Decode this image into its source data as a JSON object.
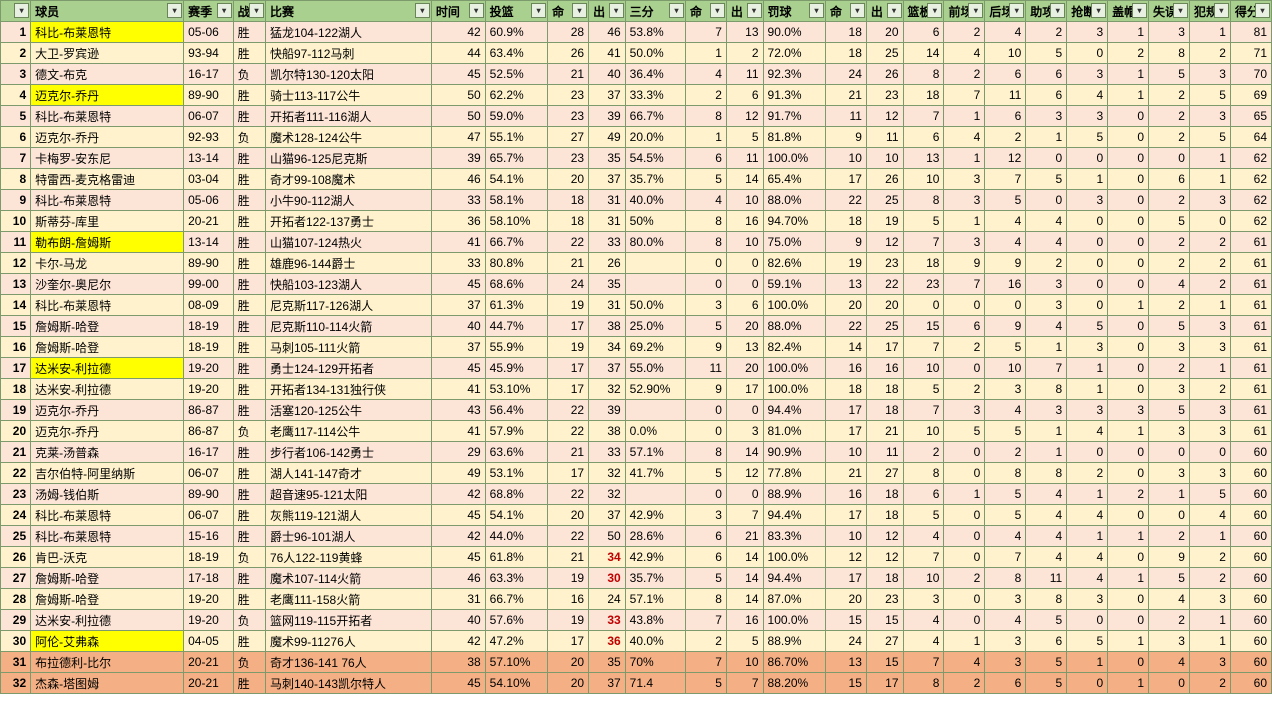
{
  "headers": [
    "",
    "球员",
    "赛季",
    "战",
    "比赛",
    "时间",
    "投篮",
    "命",
    "出",
    "三分",
    "命",
    "出",
    "罚球",
    "命",
    "出",
    "篮板",
    "前场",
    "后场",
    "助攻",
    "抢断",
    "盖帽",
    "失误",
    "犯规",
    "得分"
  ],
  "col_classes": [
    "c-idx",
    "c-player",
    "c-season",
    "c-wl",
    "c-game",
    "c-time",
    "c-fgp",
    "c-n",
    "c-n2",
    "c-3p",
    "c-n",
    "c-n2",
    "c-ftp",
    "c-n",
    "c-n2",
    "c-n",
    "c-n",
    "c-n",
    "c-n",
    "c-n",
    "c-n",
    "c-n",
    "c-n",
    "c-n"
  ],
  "numeric_cols": [
    0,
    5,
    7,
    8,
    10,
    11,
    13,
    14,
    15,
    16,
    17,
    18,
    19,
    20,
    21,
    22,
    23
  ],
  "highlight_yellow_rows_playercell": [
    0,
    3,
    10,
    16,
    29
  ],
  "salmon_rows": [
    30,
    31
  ],
  "red_cells": [
    [
      25,
      8
    ],
    [
      26,
      8
    ],
    [
      28,
      8
    ],
    [
      29,
      8
    ]
  ],
  "rows": [
    [
      1,
      "科比-布莱恩特",
      "05-06",
      "胜",
      "猛龙104-122湖人",
      42,
      "60.9%",
      28,
      46,
      "53.8%",
      7,
      13,
      "90.0%",
      18,
      20,
      6,
      2,
      4,
      2,
      3,
      1,
      3,
      1,
      81
    ],
    [
      2,
      "大卫-罗宾逊",
      "93-94",
      "胜",
      "快船97-112马刺",
      44,
      "63.4%",
      26,
      41,
      "50.0%",
      1,
      2,
      "72.0%",
      18,
      25,
      14,
      4,
      10,
      5,
      0,
      2,
      8,
      2,
      71
    ],
    [
      3,
      "德文-布克",
      "16-17",
      "负",
      "凯尔特130-120太阳",
      45,
      "52.5%",
      21,
      40,
      "36.4%",
      4,
      11,
      "92.3%",
      24,
      26,
      8,
      2,
      6,
      6,
      3,
      1,
      5,
      3,
      70
    ],
    [
      4,
      "迈克尔-乔丹",
      "89-90",
      "胜",
      "骑士113-117公牛",
      50,
      "62.2%",
      23,
      37,
      "33.3%",
      2,
      6,
      "91.3%",
      21,
      23,
      18,
      7,
      11,
      6,
      4,
      1,
      2,
      5,
      69
    ],
    [
      5,
      "科比-布莱恩特",
      "06-07",
      "胜",
      "开拓者111-116湖人",
      50,
      "59.0%",
      23,
      39,
      "66.7%",
      8,
      12,
      "91.7%",
      11,
      12,
      7,
      1,
      6,
      3,
      3,
      0,
      2,
      3,
      65
    ],
    [
      6,
      "迈克尔-乔丹",
      "92-93",
      "负",
      "魔术128-124公牛",
      47,
      "55.1%",
      27,
      49,
      "20.0%",
      1,
      5,
      "81.8%",
      9,
      11,
      6,
      4,
      2,
      1,
      5,
      0,
      2,
      5,
      64
    ],
    [
      7,
      "卡梅罗-安东尼",
      "13-14",
      "胜",
      "山猫96-125尼克斯",
      39,
      "65.7%",
      23,
      35,
      "54.5%",
      6,
      11,
      "100.0%",
      10,
      10,
      13,
      1,
      12,
      0,
      0,
      0,
      0,
      1,
      62
    ],
    [
      8,
      "特雷西-麦克格雷迪",
      "03-04",
      "胜",
      "奇才99-108魔术",
      46,
      "54.1%",
      20,
      37,
      "35.7%",
      5,
      14,
      "65.4%",
      17,
      26,
      10,
      3,
      7,
      5,
      1,
      0,
      6,
      1,
      62
    ],
    [
      9,
      "科比-布莱恩特",
      "05-06",
      "胜",
      "小牛90-112湖人",
      33,
      "58.1%",
      18,
      31,
      "40.0%",
      4,
      10,
      "88.0%",
      22,
      25,
      8,
      3,
      5,
      0,
      3,
      0,
      2,
      3,
      62
    ],
    [
      10,
      "斯蒂芬-库里",
      "20-21",
      "胜",
      "开拓者122-137勇士",
      36,
      "58.10%",
      18,
      31,
      "50%",
      8,
      16,
      "94.70%",
      18,
      19,
      5,
      1,
      4,
      4,
      0,
      0,
      5,
      0,
      62
    ],
    [
      11,
      "勒布朗-詹姆斯",
      "13-14",
      "胜",
      "山猫107-124热火",
      41,
      "66.7%",
      22,
      33,
      "80.0%",
      8,
      10,
      "75.0%",
      9,
      12,
      7,
      3,
      4,
      4,
      0,
      0,
      2,
      2,
      61
    ],
    [
      12,
      "卡尔-马龙",
      "89-90",
      "胜",
      "雄鹿96-144爵士",
      33,
      "80.8%",
      21,
      26,
      "",
      0,
      0,
      "82.6%",
      19,
      23,
      18,
      9,
      9,
      2,
      0,
      0,
      2,
      2,
      61
    ],
    [
      13,
      "沙奎尔-奥尼尔",
      "99-00",
      "胜",
      "快船103-123湖人",
      45,
      "68.6%",
      24,
      35,
      "",
      0,
      0,
      "59.1%",
      13,
      22,
      23,
      7,
      16,
      3,
      0,
      0,
      4,
      2,
      61
    ],
    [
      14,
      "科比-布莱恩特",
      "08-09",
      "胜",
      "尼克斯117-126湖人",
      37,
      "61.3%",
      19,
      31,
      "50.0%",
      3,
      6,
      "100.0%",
      20,
      20,
      0,
      0,
      0,
      3,
      0,
      1,
      2,
      1,
      61
    ],
    [
      15,
      "詹姆斯-哈登",
      "18-19",
      "胜",
      "尼克斯110-114火箭",
      40,
      "44.7%",
      17,
      38,
      "25.0%",
      5,
      20,
      "88.0%",
      22,
      25,
      15,
      6,
      9,
      4,
      5,
      0,
      5,
      3,
      61
    ],
    [
      16,
      "詹姆斯-哈登",
      "18-19",
      "胜",
      "马刺105-111火箭",
      37,
      "55.9%",
      19,
      34,
      "69.2%",
      9,
      13,
      "82.4%",
      14,
      17,
      7,
      2,
      5,
      1,
      3,
      0,
      3,
      3,
      61
    ],
    [
      17,
      "达米安-利拉德",
      "19-20",
      "胜",
      "勇士124-129开拓者",
      45,
      "45.9%",
      17,
      37,
      "55.0%",
      11,
      20,
      "100.0%",
      16,
      16,
      10,
      0,
      10,
      7,
      1,
      0,
      2,
      1,
      61
    ],
    [
      18,
      "达米安-利拉德",
      "19-20",
      "胜",
      "开拓者134-131独行侠",
      41,
      "53.10%",
      17,
      32,
      "52.90%",
      9,
      17,
      "100.0%",
      18,
      18,
      5,
      2,
      3,
      8,
      1,
      0,
      3,
      2,
      61
    ],
    [
      19,
      "迈克尔-乔丹",
      "86-87",
      "胜",
      "活塞120-125公牛",
      43,
      "56.4%",
      22,
      39,
      "",
      0,
      0,
      "94.4%",
      17,
      18,
      7,
      3,
      4,
      3,
      3,
      3,
      5,
      3,
      61
    ],
    [
      20,
      "迈克尔-乔丹",
      "86-87",
      "负",
      "老鹰117-114公牛",
      41,
      "57.9%",
      22,
      38,
      "0.0%",
      0,
      3,
      "81.0%",
      17,
      21,
      10,
      5,
      5,
      1,
      4,
      1,
      3,
      3,
      61
    ],
    [
      21,
      "克莱-汤普森",
      "16-17",
      "胜",
      "步行者106-142勇士",
      29,
      "63.6%",
      21,
      33,
      "57.1%",
      8,
      14,
      "90.9%",
      10,
      11,
      2,
      0,
      2,
      1,
      0,
      0,
      0,
      0,
      60
    ],
    [
      22,
      "吉尔伯特-阿里纳斯",
      "06-07",
      "胜",
      "湖人141-147奇才",
      49,
      "53.1%",
      17,
      32,
      "41.7%",
      5,
      12,
      "77.8%",
      21,
      27,
      8,
      0,
      8,
      8,
      2,
      0,
      3,
      3,
      60
    ],
    [
      23,
      "汤姆-钱伯斯",
      "89-90",
      "胜",
      "超音速95-121太阳",
      42,
      "68.8%",
      22,
      32,
      "",
      0,
      0,
      "88.9%",
      16,
      18,
      6,
      1,
      5,
      4,
      1,
      2,
      1,
      5,
      60
    ],
    [
      24,
      "科比-布莱恩特",
      "06-07",
      "胜",
      "灰熊119-121湖人",
      45,
      "54.1%",
      20,
      37,
      "42.9%",
      3,
      7,
      "94.4%",
      17,
      18,
      5,
      0,
      5,
      4,
      4,
      0,
      0,
      4,
      60
    ],
    [
      25,
      "科比-布莱恩特",
      "15-16",
      "胜",
      "爵士96-101湖人",
      42,
      "44.0%",
      22,
      50,
      "28.6%",
      6,
      21,
      "83.3%",
      10,
      12,
      4,
      0,
      4,
      4,
      1,
      1,
      2,
      1,
      60
    ],
    [
      26,
      "肯巴-沃克",
      "18-19",
      "负",
      "76人122-119黄蜂",
      45,
      "61.8%",
      21,
      34,
      "42.9%",
      6,
      14,
      "100.0%",
      12,
      12,
      7,
      0,
      7,
      4,
      4,
      0,
      9,
      2,
      60
    ],
    [
      27,
      "詹姆斯-哈登",
      "17-18",
      "胜",
      "魔术107-114火箭",
      46,
      "63.3%",
      19,
      30,
      "35.7%",
      5,
      14,
      "94.4%",
      17,
      18,
      10,
      2,
      8,
      11,
      4,
      1,
      5,
      2,
      60
    ],
    [
      28,
      "詹姆斯-哈登",
      "19-20",
      "胜",
      "老鹰111-158火箭",
      31,
      "66.7%",
      16,
      24,
      "57.1%",
      8,
      14,
      "87.0%",
      20,
      23,
      3,
      0,
      3,
      8,
      3,
      0,
      4,
      3,
      60
    ],
    [
      29,
      "达米安-利拉德",
      "19-20",
      "负",
      "篮网119-115开拓者",
      40,
      "57.6%",
      19,
      33,
      "43.8%",
      7,
      16,
      "100.0%",
      15,
      15,
      4,
      0,
      4,
      5,
      0,
      0,
      2,
      1,
      60
    ],
    [
      30,
      "阿伦-艾弗森",
      "04-05",
      "胜",
      "魔术99-11276人",
      42,
      "47.2%",
      17,
      36,
      "40.0%",
      2,
      5,
      "88.9%",
      24,
      27,
      4,
      1,
      3,
      6,
      5,
      1,
      3,
      1,
      60
    ],
    [
      31,
      "布拉德利-比尔",
      "20-21",
      "负",
      "奇才136-141 76人",
      38,
      "57.10%",
      20,
      35,
      "70%",
      7,
      10,
      "86.70%",
      13,
      15,
      7,
      4,
      3,
      5,
      1,
      0,
      4,
      3,
      60
    ],
    [
      32,
      "杰森-塔图姆",
      "20-21",
      "胜",
      "马刺140-143凯尔特人",
      45,
      "54.10%",
      20,
      37,
      "71.4",
      5,
      7,
      "88.20%",
      15,
      17,
      8,
      2,
      6,
      5,
      0,
      1,
      0,
      2,
      60
    ]
  ]
}
